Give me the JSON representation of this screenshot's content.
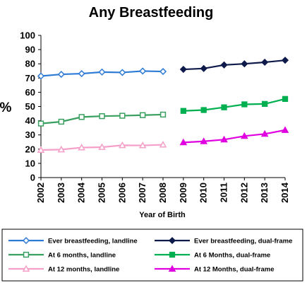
{
  "chart_data": {
    "type": "line",
    "title": "Any Breastfeeding",
    "xlabel": "Year of Birth",
    "ylabel": "%",
    "ylim": [
      0,
      100
    ],
    "yticks": [
      0,
      10,
      20,
      30,
      40,
      50,
      60,
      70,
      80,
      90,
      100
    ],
    "categories": [
      "2002",
      "2003",
      "2004",
      "2005",
      "2006",
      "2007",
      "2008",
      "2009",
      "2010",
      "2011",
      "2012",
      "2013",
      "2014"
    ],
    "grid": false,
    "legend_position": "bottom",
    "series": [
      {
        "name": "Ever breastfeeding, landline",
        "color": "#2E7BD6",
        "marker": "diamond-open",
        "values": [
          71.4,
          72.6,
          73.1,
          74.2,
          73.9,
          74.9,
          74.6,
          null,
          null,
          null,
          null,
          null,
          null
        ]
      },
      {
        "name": "Ever breastfeeding, dual-frame",
        "color": "#0D1A4A",
        "marker": "diamond-filled",
        "values": [
          null,
          null,
          null,
          null,
          null,
          null,
          null,
          76.1,
          76.7,
          79.2,
          80.0,
          81.1,
          82.5
        ]
      },
      {
        "name": "At 6 months, landline",
        "color": "#3AA060",
        "marker": "square-open",
        "values": [
          38.0,
          39.3,
          42.6,
          43.2,
          43.5,
          43.9,
          44.3,
          null,
          null,
          null,
          null,
          null,
          null
        ]
      },
      {
        "name": "At 6 Months, dual-frame",
        "color": "#00B050",
        "marker": "square-filled",
        "values": [
          null,
          null,
          null,
          null,
          null,
          null,
          null,
          46.9,
          47.5,
          49.4,
          51.5,
          51.8,
          55.3
        ]
      },
      {
        "name": "At 12 months, landline",
        "color": "#F5A0C8",
        "marker": "triangle-open",
        "values": [
          19.4,
          19.7,
          21.1,
          21.4,
          22.7,
          22.6,
          23.1,
          null,
          null,
          null,
          null,
          null,
          null
        ]
      },
      {
        "name": "At 12 Months, dual-frame",
        "color": "#E000E0",
        "marker": "triangle-filled",
        "values": [
          null,
          null,
          null,
          null,
          null,
          null,
          null,
          24.7,
          25.5,
          26.7,
          29.2,
          30.7,
          33.4
        ]
      }
    ]
  }
}
